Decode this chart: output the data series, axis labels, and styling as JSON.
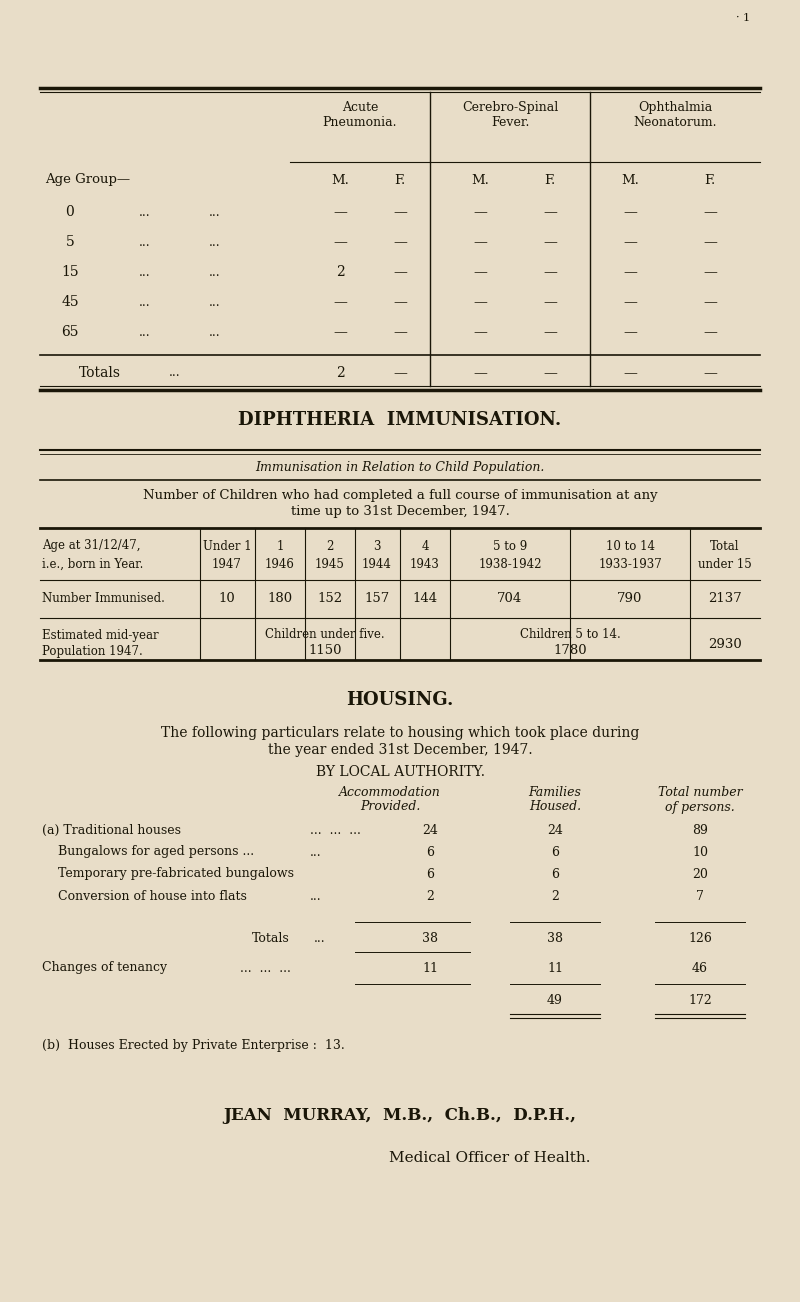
{
  "bg_color": "#e8ddc8",
  "text_color": "#1a1608",
  "page_width": 8.0,
  "page_height": 13.02,
  "dpi": 100,
  "table1": {
    "title_col1": "Acute\nPneumonia.",
    "title_col2": "Cerebro-Spinal\nFever.",
    "title_col3": "Ophthalmia\nNeonatorum.",
    "rows": [
      {
        "age": "0",
        "vals": [
          "—",
          "—",
          "—",
          "—",
          "—",
          "—"
        ]
      },
      {
        "age": "5",
        "vals": [
          "—",
          "—",
          "—",
          "—",
          "—",
          "—"
        ]
      },
      {
        "age": "15",
        "vals": [
          "2",
          "—",
          "—",
          "—",
          "—",
          "—"
        ]
      },
      {
        "age": "45",
        "vals": [
          "—",
          "—",
          "—",
          "—",
          "—",
          "—"
        ]
      },
      {
        "age": "65",
        "vals": [
          "—",
          "—",
          "—",
          "—",
          "—",
          "—"
        ]
      }
    ],
    "totals_vals": [
      "2",
      "—",
      "—",
      "—",
      "—",
      "—"
    ]
  },
  "diph_title": "DIPHTHERIA  IMMUNISATION.",
  "diph_subtitle": "Immunisation in Relation to Child Population.",
  "diph_desc_line1": "Number of Children who had completed a full course of immunisation at any",
  "diph_desc_line2": "time up to 31st December, 1947.",
  "diph_col_headers": [
    "Under 1\n1947",
    "1\n1946",
    "2\n1945",
    "3\n1944",
    "4\n1943",
    "5 to 9\n1938-1942",
    "10 to 14\n1933-1937",
    "Total\nunder 15"
  ],
  "diph_row2_vals": [
    "10",
    "180",
    "152",
    "157",
    "144",
    "704",
    "790",
    "2137"
  ],
  "housing_title": "HOUSING.",
  "housing_desc1": "The following particulars relate to housing which took place during",
  "housing_desc2": "the year ended 31st December, 1947.",
  "housing_authority": "BY LOCAL AUTHORITY.",
  "housing_rows": [
    {
      "label": "(a) Traditional houses",
      "dots": "...  ...  ...",
      "v1": "24",
      "v2": "24",
      "v3": "89"
    },
    {
      "label": "    Bungalows for aged persons ...",
      "dots": "...",
      "v1": "6",
      "v2": "6",
      "v3": "10"
    },
    {
      "label": "    Temporary pre-fabricated bungalows",
      "dots": "",
      "v1": "6",
      "v2": "6",
      "v3": "20"
    },
    {
      "label": "    Conversion of house into flats",
      "dots": "...",
      "v1": "2",
      "v2": "2",
      "v3": "7"
    }
  ],
  "housing_private": "(b)  Houses Erected by Private Enterprise :  13.",
  "signature_name": "JEAN  MURRAY,  M.B.,  Ch.B.,  D.P.H.,",
  "signature_title": "Medical Officer of Health."
}
